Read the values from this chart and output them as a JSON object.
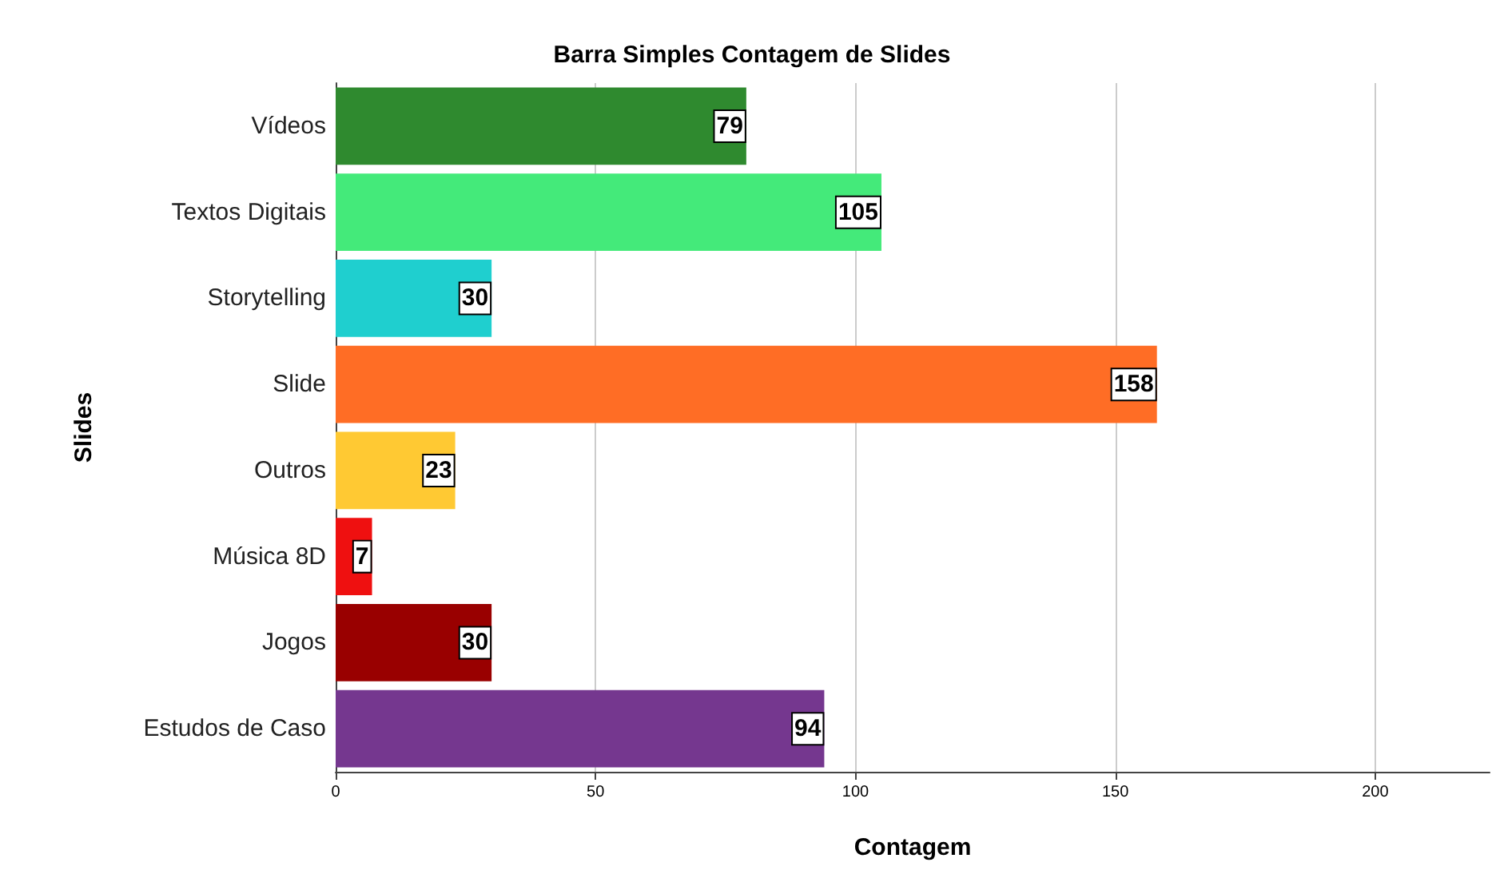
{
  "chart_data": {
    "type": "bar",
    "orientation": "horizontal",
    "title": "Barra Simples Contagem de Slides",
    "xlabel": "Contagem",
    "ylabel": "Slides",
    "categories": [
      "Vídeos",
      "Textos Digitais",
      "Storytelling",
      "Slide",
      "Outros",
      "Música 8D",
      "Jogos",
      "Estudos de Caso"
    ],
    "values": [
      79,
      105,
      30,
      158,
      23,
      7,
      30,
      94
    ],
    "colors": [
      "#2f8a2f",
      "#44ea7a",
      "#1fcfcf",
      "#ff6d25",
      "#ffc933",
      "#ef1010",
      "#990000",
      "#75378f"
    ],
    "xlim": [
      0,
      222
    ],
    "xticks": [
      0,
      50,
      100,
      150,
      200
    ],
    "grid": "x",
    "data_labels": true
  }
}
